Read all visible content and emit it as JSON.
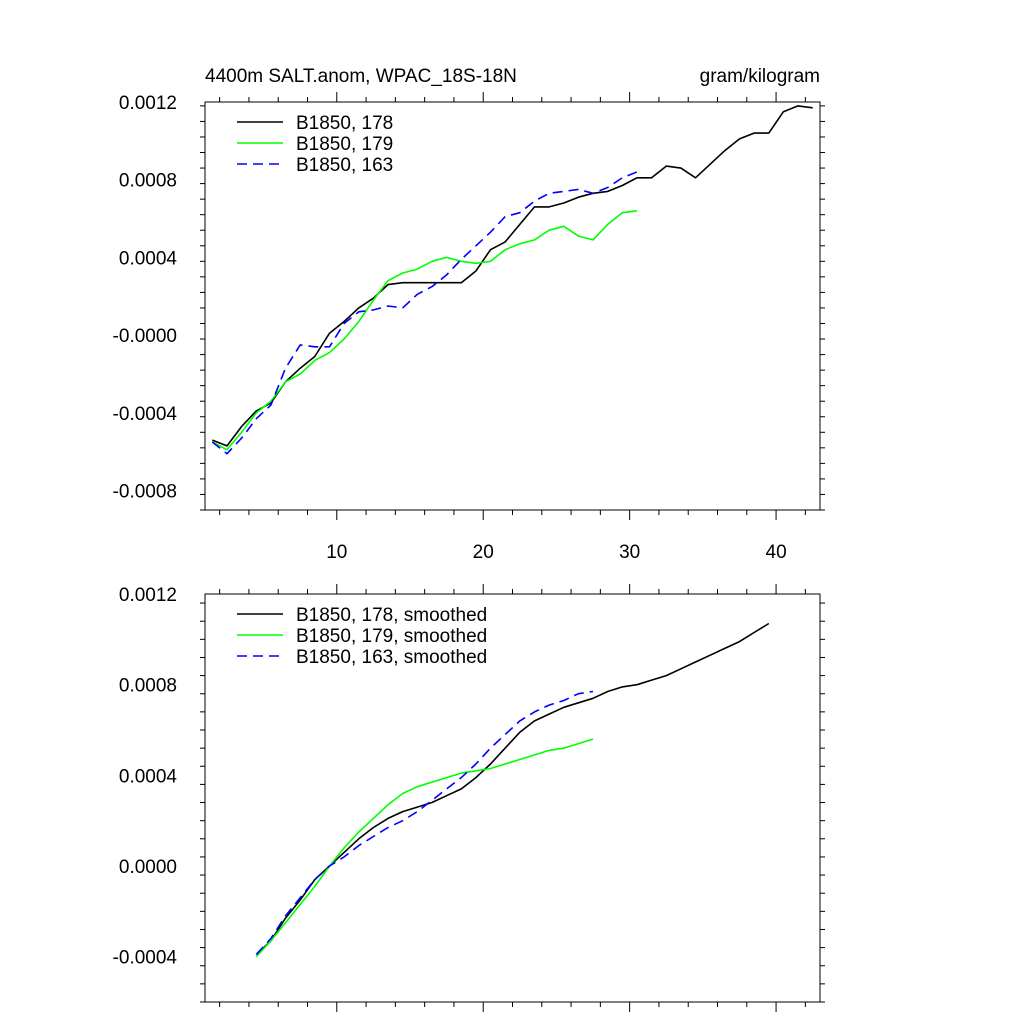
{
  "chart_data": [
    {
      "type": "line",
      "title": "4400m SALT.anom, WPAC_18S-18N",
      "units_label": "gram/kilogram",
      "xlim": [
        1,
        43
      ],
      "ylim": [
        -0.0009,
        0.0012
      ],
      "x_ticks": [
        10,
        20,
        30,
        40
      ],
      "x_tick_labels": [
        "10",
        "20",
        "30",
        "40"
      ],
      "y_ticks": [
        -0.0008,
        -0.0004,
        0.0,
        0.0004,
        0.0008,
        0.0012
      ],
      "y_tick_labels": [
        "-0.0008",
        "-0.0004",
        "-0.0000",
        "0.0004",
        "0.0008",
        "0.0012"
      ],
      "legend_position": "top-left",
      "series": [
        {
          "name": "B1850, 178",
          "color": "#000000",
          "dash": "solid",
          "x": [
            1.5,
            2.5,
            3.5,
            4.5,
            5.5,
            6.5,
            7.5,
            8.5,
            9.5,
            10.5,
            11.5,
            12.5,
            13.5,
            14.5,
            15.5,
            16.5,
            17.5,
            18.5,
            19.5,
            20.5,
            21.5,
            22.5,
            23.5,
            24.5,
            25.5,
            26.5,
            27.5,
            28.5,
            29.5,
            30.5,
            31.5,
            32.5,
            33.5,
            34.5,
            35.5,
            36.5,
            37.5,
            38.5,
            39.5,
            40.5,
            41.5,
            42.5
          ],
          "y": [
            -0.00054,
            -0.00057,
            -0.00047,
            -0.00039,
            -0.00035,
            -0.00024,
            -0.00017,
            -0.00011,
            1e-05,
            7e-05,
            0.00014,
            0.00019,
            0.00026,
            0.00027,
            0.00027,
            0.00027,
            0.00027,
            0.00027,
            0.00033,
            0.00044,
            0.00048,
            0.00057,
            0.00066,
            0.00066,
            0.00068,
            0.00071,
            0.00073,
            0.00074,
            0.00077,
            0.00081,
            0.00081,
            0.00087,
            0.00086,
            0.00081,
            0.00088,
            0.00095,
            0.00101,
            0.00104,
            0.00104,
            0.00115,
            0.00118,
            0.00117
          ]
        },
        {
          "name": "B1850, 179",
          "color": "#00ff00",
          "dash": "solid",
          "x": [
            1.5,
            2.5,
            3.5,
            4.5,
            5.5,
            6.5,
            7.5,
            8.5,
            9.5,
            10.5,
            11.5,
            12.5,
            13.5,
            14.5,
            15.5,
            16.5,
            17.5,
            18.5,
            19.5,
            20.5,
            21.5,
            22.5,
            23.5,
            24.5,
            25.5,
            26.5,
            27.5,
            28.5,
            29.5,
            30.5
          ],
          "y": [
            -0.00055,
            -0.00059,
            -0.0005,
            -0.0004,
            -0.00034,
            -0.00024,
            -0.0002,
            -0.00013,
            -9e-05,
            -2e-05,
            7e-05,
            0.00018,
            0.00028,
            0.00032,
            0.00034,
            0.00038,
            0.0004,
            0.00038,
            0.00037,
            0.00038,
            0.00044,
            0.00047,
            0.00049,
            0.00054,
            0.00056,
            0.00051,
            0.00049,
            0.00057,
            0.00063,
            0.00064
          ]
        },
        {
          "name": "B1850, 163",
          "color": "#0000ff",
          "dash": "dashed",
          "x": [
            1.5,
            2.5,
            3.5,
            4.5,
            5.5,
            6.5,
            7.5,
            8.5,
            9.5,
            10.5,
            11.5,
            12.5,
            13.5,
            14.5,
            15.5,
            16.5,
            17.5,
            18.5,
            19.5,
            20.5,
            21.5,
            22.5,
            23.5,
            24.5,
            25.5,
            26.5,
            27.5,
            28.5,
            29.5,
            30.5
          ],
          "y": [
            -0.00055,
            -0.00061,
            -0.00053,
            -0.00043,
            -0.00036,
            -0.00017,
            -5e-05,
            -6e-05,
            -6e-05,
            6e-05,
            0.00012,
            0.00013,
            0.00015,
            0.00014,
            0.00021,
            0.00025,
            0.00031,
            0.00039,
            0.00046,
            0.00053,
            0.00061,
            0.00063,
            0.00069,
            0.00073,
            0.00074,
            0.00075,
            0.00073,
            0.00076,
            0.00081,
            0.00084
          ]
        }
      ]
    },
    {
      "type": "line",
      "xlim": [
        1,
        43
      ],
      "ylim": [
        -0.0006,
        0.0012
      ],
      "x_ticks": [
        10,
        20,
        30,
        40
      ],
      "x_tick_labels": [],
      "y_ticks": [
        -0.0004,
        0.0,
        0.0004,
        0.0008,
        0.0012
      ],
      "y_tick_labels": [
        "-0.0004",
        "0.0000",
        "0.0004",
        "0.0008",
        "0.0012"
      ],
      "legend_position": "top-left",
      "series": [
        {
          "name": "B1850, 178, smoothed",
          "color": "#000000",
          "dash": "solid",
          "x": [
            4.5,
            5.5,
            6.5,
            7.5,
            8.5,
            9.5,
            10.5,
            11.5,
            12.5,
            13.5,
            14.5,
            15.5,
            16.5,
            17.5,
            18.5,
            19.5,
            20.5,
            21.5,
            22.5,
            23.5,
            24.5,
            25.5,
            26.5,
            27.5,
            28.5,
            29.5,
            30.5,
            31.5,
            32.5,
            33.5,
            34.5,
            35.5,
            36.5,
            37.5,
            38.5,
            39.5
          ],
          "y": [
            -0.00039,
            -0.00033,
            -0.00023,
            -0.00015,
            -6e-05,
            0.0,
            6e-05,
            0.00012,
            0.00017,
            0.00021,
            0.00024,
            0.00026,
            0.00028,
            0.00031,
            0.00034,
            0.00039,
            0.00045,
            0.00052,
            0.00059,
            0.00064,
            0.00067,
            0.0007,
            0.00072,
            0.00074,
            0.00077,
            0.00079,
            0.0008,
            0.00082,
            0.00084,
            0.00087,
            0.0009,
            0.00093,
            0.00096,
            0.00099,
            0.00103,
            0.00107
          ]
        },
        {
          "name": "B1850, 179, smoothed",
          "color": "#00ff00",
          "dash": "solid",
          "x": [
            4.5,
            5.5,
            6.5,
            7.5,
            8.5,
            9.5,
            10.5,
            11.5,
            12.5,
            13.5,
            14.5,
            15.5,
            16.5,
            17.5,
            18.5,
            19.5,
            20.5,
            21.5,
            22.5,
            23.5,
            24.5,
            25.5,
            26.5,
            27.5
          ],
          "y": [
            -0.0004,
            -0.00033,
            -0.00025,
            -0.00017,
            -9e-05,
            0.0,
            8e-05,
            0.00015,
            0.00021,
            0.00027,
            0.00032,
            0.00035,
            0.00037,
            0.00039,
            0.00041,
            0.00042,
            0.00043,
            0.00045,
            0.00047,
            0.00049,
            0.00051,
            0.00052,
            0.00054,
            0.00056
          ]
        },
        {
          "name": "B1850, 163, smoothed",
          "color": "#0000ff",
          "dash": "dashed",
          "x": [
            4.5,
            5.5,
            6.5,
            7.5,
            8.5,
            9.5,
            10.5,
            11.5,
            12.5,
            13.5,
            14.5,
            15.5,
            16.5,
            17.5,
            18.5,
            19.5,
            20.5,
            21.5,
            22.5,
            23.5,
            24.5,
            25.5,
            26.5,
            27.5
          ],
          "y": [
            -0.00039,
            -0.00032,
            -0.00022,
            -0.00014,
            -6e-05,
            0.0,
            4e-05,
            9e-05,
            0.00013,
            0.00017,
            0.0002,
            0.00024,
            0.00029,
            0.00034,
            0.00039,
            0.00045,
            0.00052,
            0.00058,
            0.00064,
            0.00068,
            0.00071,
            0.00073,
            0.00076,
            0.00077
          ]
        }
      ]
    }
  ]
}
